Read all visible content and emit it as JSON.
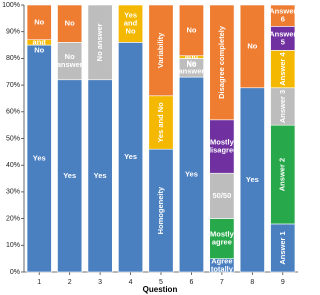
{
  "chart_data": {
    "type": "stacked-bar",
    "x_label": "Question",
    "categories": [
      "1",
      "2",
      "3",
      "4",
      "5",
      "6",
      "7",
      "8",
      "9"
    ],
    "ylim": [
      0,
      100
    ],
    "yticks": [
      {
        "value": 0,
        "label": "0%"
      },
      {
        "value": 10,
        "label": "10%"
      },
      {
        "value": 20,
        "label": "20%"
      },
      {
        "value": 30,
        "label": "30%"
      },
      {
        "value": 40,
        "label": "40%"
      },
      {
        "value": 50,
        "label": "50%"
      },
      {
        "value": 60,
        "label": "60%"
      },
      {
        "value": 70,
        "label": "70%"
      },
      {
        "value": 80,
        "label": "80%"
      },
      {
        "value": 90,
        "label": "90%"
      },
      {
        "value": 100,
        "label": "100%"
      }
    ],
    "stacks": [
      [
        {
          "label": "Yes",
          "value": 85,
          "color": "#4a7fc0"
        },
        {
          "label": "Yes and No",
          "value": 2,
          "color": "#f5b800"
        },
        {
          "label": "No",
          "value": 13,
          "color": "#ee7d31"
        }
      ],
      [
        {
          "label": "Yes",
          "value": 72,
          "color": "#4a7fc0"
        },
        {
          "label": "No answer",
          "value": 14,
          "color": "#bdbdbd"
        },
        {
          "label": "No",
          "value": 14,
          "color": "#ee7d31"
        }
      ],
      [
        {
          "label": "Yes",
          "value": 72,
          "color": "#4a7fc0"
        },
        {
          "label": "No answer",
          "value": 28,
          "color": "#bdbdbd"
        }
      ],
      [
        {
          "label": "Yes",
          "value": 86,
          "color": "#4a7fc0"
        },
        {
          "label": "Yes and No",
          "value": 14,
          "color": "#f5b800"
        }
      ],
      [
        {
          "label": "Homogeneity",
          "value": 46,
          "color": "#4a7fc0"
        },
        {
          "label": "Yes and No",
          "value": 20,
          "color": "#f5b800"
        },
        {
          "label": "Variability",
          "value": 34,
          "color": "#ee7d31"
        }
      ],
      [
        {
          "label": "Yes",
          "value": 73,
          "color": "#4a7fc0"
        },
        {
          "label": "No answer",
          "value": 7,
          "color": "#bdbdbd"
        },
        {
          "label": "Yes and No",
          "value": 1,
          "color": "#f5b800"
        },
        {
          "label": "No",
          "value": 19,
          "color": "#ee7d31"
        }
      ],
      [
        {
          "label": "Agree totally",
          "value": 5,
          "color": "#4a7fc0"
        },
        {
          "label": "Mostly agree",
          "value": 15,
          "color": "#27a84a"
        },
        {
          "label": "50/50",
          "value": 17,
          "color": "#bdbdbd"
        },
        {
          "label": "Mostly disagree",
          "value": 20,
          "color": "#7030a0"
        },
        {
          "label": "Disagree completely",
          "value": 43,
          "color": "#ee7d31"
        }
      ],
      [
        {
          "label": "Yes",
          "value": 69,
          "color": "#4a7fc0"
        },
        {
          "label": "No",
          "value": 31,
          "color": "#ee7d31"
        }
      ],
      [
        {
          "label": "Answer 1",
          "value": 18,
          "color": "#4a7fc0"
        },
        {
          "label": "Answer 2",
          "value": 37,
          "color": "#27a84a"
        },
        {
          "label": "Answer 3",
          "value": 14,
          "color": "#bdbdbd"
        },
        {
          "label": "Answer 4",
          "value": 14,
          "color": "#f5b800"
        },
        {
          "label": "Answer 5",
          "value": 9,
          "color": "#7030a0"
        },
        {
          "label": "Answer 6",
          "value": 8,
          "color": "#ee7d31"
        }
      ]
    ]
  }
}
